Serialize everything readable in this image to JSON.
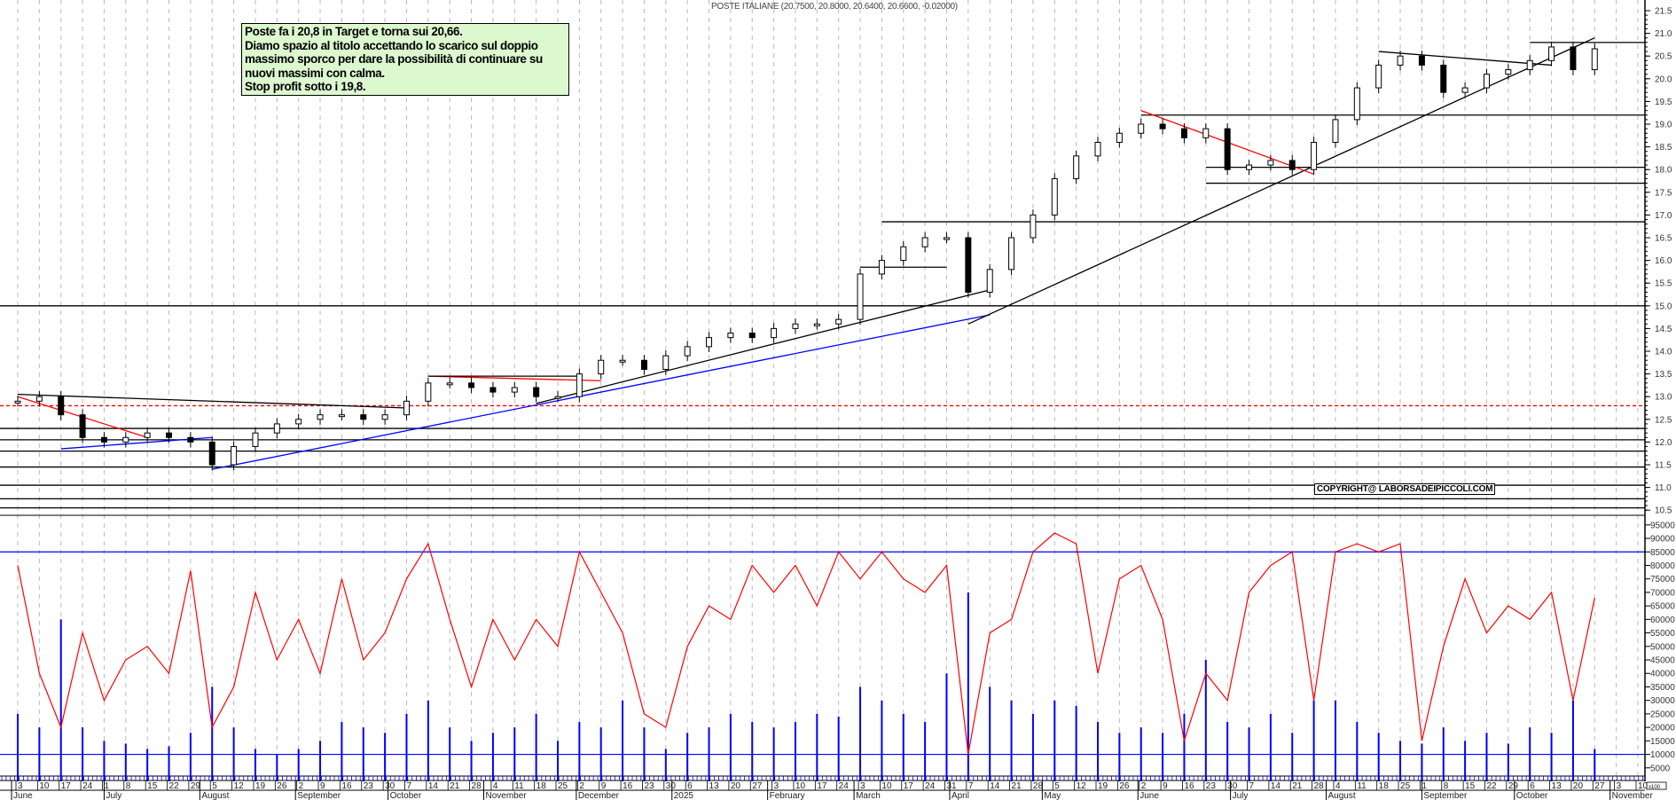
{
  "title": "POSTE ITALIANE (20.7500, 20.8000, 20.6400, 20.6600, -0.02000)",
  "note": {
    "lines": [
      "Poste fa i 20,8 in Target e torna sui 20,66.",
      "Diamo spazio al titolo accettando lo scarico sul doppio",
      "massimo sporco per dare la possibilità di continuare su",
      "nuovi massimi con calma.",
      "Stop profit sotto i 19,8."
    ],
    "background": "#dcf8cf"
  },
  "copyright": "COPYRIGHT@ LABORSADEIPICCOLI.COM",
  "volume_unit_label": "x100",
  "chart_data": [
    {
      "type": "candlestick",
      "panel": "price",
      "ylim": [
        10.5,
        21.5
      ],
      "y_ticks": [
        "21.5",
        "21.0",
        "20.5",
        "20.0",
        "19.5",
        "19.0",
        "18.5",
        "18.0",
        "17.5",
        "17.0",
        "16.5",
        "16.0",
        "15.5",
        "15.0",
        "14.5",
        "14.0",
        "13.5",
        "13.0",
        "12.5",
        "12.0",
        "11.5",
        "11.0",
        "10.5"
      ],
      "grid": "vertical dashed weekly",
      "dates": [
        "2024-06-03",
        "2024-06-10",
        "2024-06-17",
        "2024-06-24",
        "2024-07-01",
        "2024-07-08",
        "2024-07-15",
        "2024-07-22",
        "2024-07-29",
        "2024-08-05",
        "2024-08-12",
        "2024-08-19",
        "2024-08-26",
        "2024-09-02",
        "2024-09-09",
        "2024-09-16",
        "2024-09-23",
        "2024-09-30",
        "2024-10-07",
        "2024-10-14",
        "2024-10-21",
        "2024-10-28",
        "2024-11-04",
        "2024-11-11",
        "2024-11-18",
        "2024-11-25",
        "2024-12-02",
        "2024-12-09",
        "2024-12-16",
        "2024-12-23",
        "2024-12-30",
        "2025-01-06",
        "2025-01-13",
        "2025-01-20",
        "2025-01-27",
        "2025-02-03",
        "2025-02-10",
        "2025-02-17",
        "2025-02-24",
        "2025-03-03",
        "2025-03-10",
        "2025-03-17",
        "2025-03-24",
        "2025-03-31",
        "2025-04-07",
        "2025-04-14",
        "2025-04-21",
        "2025-04-28",
        "2025-05-05",
        "2025-05-12",
        "2025-05-19",
        "2025-05-26",
        "2025-06-02",
        "2025-06-09",
        "2025-06-16",
        "2025-06-23",
        "2025-06-30",
        "2025-07-07",
        "2025-07-14",
        "2025-07-21",
        "2025-07-28",
        "2025-08-04",
        "2025-08-11",
        "2025-08-18",
        "2025-08-25",
        "2025-09-01",
        "2025-09-08",
        "2025-09-15",
        "2025-09-22",
        "2025-09-29",
        "2025-10-06",
        "2025-10-13",
        "2025-10-20",
        "2025-10-27"
      ],
      "close": [
        12.9,
        13.0,
        12.6,
        12.1,
        12.0,
        12.1,
        12.2,
        12.1,
        12.0,
        11.5,
        11.9,
        12.2,
        12.4,
        12.5,
        12.6,
        12.6,
        12.5,
        12.6,
        12.9,
        13.3,
        13.3,
        13.2,
        13.1,
        13.2,
        13.0,
        13.0,
        13.5,
        13.8,
        13.8,
        13.6,
        13.9,
        14.1,
        14.3,
        14.4,
        14.3,
        14.5,
        14.6,
        14.6,
        14.7,
        15.7,
        16.0,
        16.3,
        16.5,
        16.5,
        15.3,
        15.8,
        16.5,
        17.0,
        17.8,
        18.3,
        18.6,
        18.8,
        19.0,
        18.9,
        18.7,
        18.9,
        18.0,
        18.1,
        18.2,
        18.0,
        18.6,
        19.1,
        19.8,
        20.3,
        20.5,
        20.3,
        19.7,
        19.8,
        20.1,
        20.2,
        20.4,
        20.7,
        20.2,
        20.66
      ],
      "horizontal_levels": [
        {
          "price": 20.8,
          "from": "2025-10-06",
          "color": "#000000"
        },
        {
          "price": 19.2,
          "from": "2025-06-02",
          "color": "#000000"
        },
        {
          "price": 18.05,
          "from": "2025-06-23",
          "color": "#000000"
        },
        {
          "price": 17.7,
          "from": "2025-06-23",
          "color": "#000000"
        },
        {
          "price": 16.85,
          "from": "2025-03-10",
          "color": "#000000"
        },
        {
          "price": 15.85,
          "from": "2025-03-03",
          "to": "2025-03-31",
          "color": "#000000"
        },
        {
          "price": 15.0,
          "color": "#000000"
        },
        {
          "price": 12.8,
          "color": "#ff0000",
          "dashed": true
        },
        {
          "price": 12.3,
          "color": "#000000"
        },
        {
          "price": 12.05,
          "color": "#000000"
        },
        {
          "price": 11.8,
          "color": "#000000"
        },
        {
          "price": 11.45,
          "color": "#000000"
        },
        {
          "price": 11.05,
          "color": "#000000"
        },
        {
          "price": 10.75,
          "color": "#000000"
        },
        {
          "price": 10.55,
          "color": "#000000"
        }
      ],
      "trendlines": [
        {
          "from": [
            "2024-06-03",
            13.05
          ],
          "to": [
            "2024-10-07",
            12.75
          ],
          "color": "#000000"
        },
        {
          "from": [
            "2024-06-03",
            13.0
          ],
          "to": [
            "2024-07-15",
            12.1
          ],
          "color": "#ff0000"
        },
        {
          "from": [
            "2024-06-17",
            11.85
          ],
          "to": [
            "2024-08-05",
            12.1
          ],
          "color": "#0000ff"
        },
        {
          "from": [
            "2024-08-05",
            11.4
          ],
          "to": [
            "2025-04-14",
            14.8
          ],
          "color": "#0000ff"
        },
        {
          "from": [
            "2024-11-18",
            12.85
          ],
          "to": [
            "2025-04-14",
            15.35
          ],
          "color": "#000000"
        },
        {
          "from": [
            "2024-10-14",
            13.45
          ],
          "to": [
            "2024-12-09",
            13.35
          ],
          "color": "#ff0000"
        },
        {
          "from": [
            "2024-10-14",
            13.45
          ],
          "to": [
            "2024-12-02",
            13.45
          ],
          "color": "#000000"
        },
        {
          "from": [
            "2025-04-07",
            14.6
          ],
          "to": [
            "2025-10-27",
            20.9
          ],
          "color": "#000000"
        },
        {
          "from": [
            "2025-06-02",
            19.3
          ],
          "to": [
            "2025-07-28",
            17.9
          ],
          "color": "#ff0000"
        },
        {
          "from": [
            "2025-08-18",
            20.6
          ],
          "to": [
            "2025-10-13",
            20.3
          ],
          "color": "#000000"
        }
      ]
    },
    {
      "type": "bar+line",
      "panel": "volume",
      "ylim": [
        0,
        95000
      ],
      "y_ticks": [
        "95000",
        "90000",
        "85000",
        "80000",
        "75000",
        "70000",
        "65000",
        "60000",
        "55000",
        "50000",
        "45000",
        "40000",
        "35000",
        "30000",
        "25000",
        "20000",
        "15000",
        "10000",
        "5000"
      ],
      "reference_lines": [
        85000,
        10000
      ],
      "volume_color": "#0000ff",
      "oscillator_color": "#ff0000",
      "volume": [
        25000,
        20000,
        60000,
        20000,
        15000,
        14000,
        12000,
        13000,
        18000,
        35000,
        20000,
        12000,
        10000,
        12000,
        15000,
        22000,
        20000,
        18000,
        25000,
        30000,
        20000,
        15000,
        18000,
        20000,
        25000,
        15000,
        22000,
        20000,
        30000,
        20000,
        12000,
        18000,
        20000,
        25000,
        22000,
        20000,
        22000,
        25000,
        24000,
        35000,
        30000,
        25000,
        22000,
        40000,
        70000,
        35000,
        30000,
        25000,
        30000,
        28000,
        22000,
        18000,
        20000,
        18000,
        25000,
        45000,
        22000,
        20000,
        25000,
        18000,
        30000,
        30000,
        22000,
        18000,
        15000,
        14000,
        20000,
        15000,
        18000,
        14000,
        20000,
        18000,
        30000,
        12000
      ],
      "oscillator": [
        80000,
        40000,
        20000,
        55000,
        30000,
        45000,
        50000,
        40000,
        78000,
        20000,
        35000,
        70000,
        45000,
        60000,
        40000,
        75000,
        45000,
        55000,
        75000,
        88000,
        60000,
        35000,
        60000,
        45000,
        60000,
        50000,
        85000,
        70000,
        55000,
        25000,
        20000,
        50000,
        65000,
        60000,
        80000,
        70000,
        80000,
        65000,
        85000,
        75000,
        85000,
        75000,
        70000,
        80000,
        10000,
        55000,
        60000,
        85000,
        92000,
        88000,
        40000,
        75000,
        80000,
        60000,
        15000,
        40000,
        30000,
        70000,
        80000,
        85000,
        30000,
        85000,
        88000,
        85000,
        88000,
        15000,
        50000,
        75000,
        55000,
        65000,
        60000,
        70000,
        30000,
        68000
      ]
    }
  ],
  "x_axis": {
    "extra_ticks": [
      "2025-11-03",
      "2025-11-10"
    ],
    "months": [
      {
        "label": "June",
        "date": "2024-06-01"
      },
      {
        "label": "July",
        "date": "2024-07-01"
      },
      {
        "label": "August",
        "date": "2024-08-01"
      },
      {
        "label": "September",
        "date": "2024-09-01"
      },
      {
        "label": "October",
        "date": "2024-10-01"
      },
      {
        "label": "November",
        "date": "2024-11-01"
      },
      {
        "label": "December",
        "date": "2024-12-01"
      },
      {
        "label": "2025",
        "date": "2025-01-01"
      },
      {
        "label": "February",
        "date": "2025-02-01"
      },
      {
        "label": "March",
        "date": "2025-03-01"
      },
      {
        "label": "April",
        "date": "2025-04-01"
      },
      {
        "label": "May",
        "date": "2025-05-01"
      },
      {
        "label": "June",
        "date": "2025-06-01"
      },
      {
        "label": "July",
        "date": "2025-07-01"
      },
      {
        "label": "August",
        "date": "2025-08-01"
      },
      {
        "label": "September",
        "date": "2025-09-01"
      },
      {
        "label": "October",
        "date": "2025-10-01"
      },
      {
        "label": "November",
        "date": "2025-11-01"
      }
    ]
  }
}
